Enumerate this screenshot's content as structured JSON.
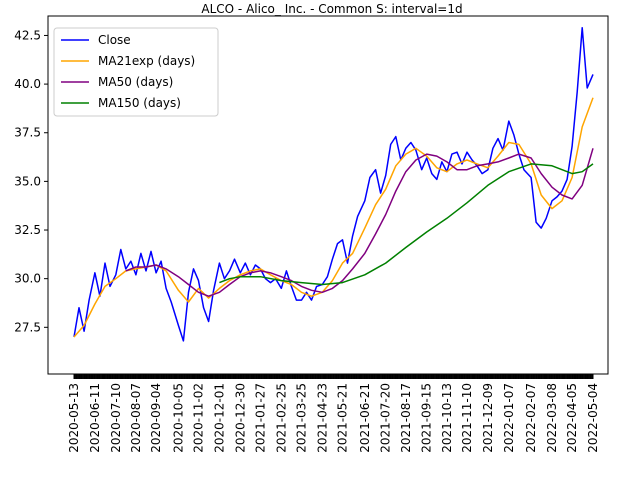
{
  "chart_data": {
    "type": "line",
    "title": "ALCO - Alico_ Inc. - Common S: interval=1d",
    "xlabel": "",
    "ylabel": "",
    "x_ticks": [
      "2020-05-13",
      "2020-06-11",
      "2020-07-10",
      "2020-08-07",
      "2020-09-04",
      "2020-10-05",
      "2020-11-02",
      "2020-12-01",
      "2020-12-30",
      "2021-01-27",
      "2021-02-25",
      "2021-03-25",
      "2021-04-23",
      "2021-05-21",
      "2021-06-21",
      "2021-07-20",
      "2021-08-17",
      "2021-09-15",
      "2021-10-13",
      "2021-11-10",
      "2021-12-09",
      "2022-01-07",
      "2022-02-07",
      "2022-03-08",
      "2022-04-05",
      "2022-05-04"
    ],
    "x_range": [
      "2020-05-13",
      "2022-05-04"
    ],
    "y_ticks": [
      27.5,
      30.0,
      32.5,
      35.0,
      37.5,
      40.0,
      42.5
    ],
    "ylim": [
      25.1,
      43.5
    ],
    "grid": false,
    "legend_position": "top-left",
    "series": [
      {
        "name": "Close",
        "color": "#0000ff",
        "points": [
          [
            "2020-05-13",
            27.0
          ],
          [
            "2020-05-20",
            28.5
          ],
          [
            "2020-05-27",
            27.3
          ],
          [
            "2020-06-03",
            28.9
          ],
          [
            "2020-06-11",
            30.3
          ],
          [
            "2020-06-18",
            29.1
          ],
          [
            "2020-06-25",
            30.8
          ],
          [
            "2020-07-02",
            29.6
          ],
          [
            "2020-07-10",
            30.2
          ],
          [
            "2020-07-17",
            31.5
          ],
          [
            "2020-07-24",
            30.5
          ],
          [
            "2020-07-31",
            30.9
          ],
          [
            "2020-08-07",
            30.2
          ],
          [
            "2020-08-14",
            31.3
          ],
          [
            "2020-08-21",
            30.4
          ],
          [
            "2020-08-28",
            31.4
          ],
          [
            "2020-09-04",
            30.3
          ],
          [
            "2020-09-11",
            30.9
          ],
          [
            "2020-09-18",
            29.5
          ],
          [
            "2020-09-25",
            28.8
          ],
          [
            "2020-10-05",
            27.6
          ],
          [
            "2020-10-12",
            26.8
          ],
          [
            "2020-10-19",
            29.3
          ],
          [
            "2020-10-26",
            30.5
          ],
          [
            "2020-11-02",
            29.9
          ],
          [
            "2020-11-09",
            28.5
          ],
          [
            "2020-11-16",
            27.8
          ],
          [
            "2020-11-23",
            29.4
          ],
          [
            "2020-12-01",
            30.8
          ],
          [
            "2020-12-08",
            30.0
          ],
          [
            "2020-12-15",
            30.4
          ],
          [
            "2020-12-22",
            31.0
          ],
          [
            "2020-12-30",
            30.3
          ],
          [
            "2021-01-06",
            30.8
          ],
          [
            "2021-01-13",
            30.2
          ],
          [
            "2021-01-20",
            30.7
          ],
          [
            "2021-01-27",
            30.5
          ],
          [
            "2021-02-03",
            30.0
          ],
          [
            "2021-02-10",
            29.8
          ],
          [
            "2021-02-17",
            30.0
          ],
          [
            "2021-02-25",
            29.5
          ],
          [
            "2021-03-04",
            30.4
          ],
          [
            "2021-03-11",
            29.6
          ],
          [
            "2021-03-18",
            28.9
          ],
          [
            "2021-03-25",
            28.9
          ],
          [
            "2021-04-01",
            29.3
          ],
          [
            "2021-04-08",
            28.9
          ],
          [
            "2021-04-15",
            29.6
          ],
          [
            "2021-04-23",
            29.7
          ],
          [
            "2021-04-30",
            30.1
          ],
          [
            "2021-05-07",
            31.0
          ],
          [
            "2021-05-14",
            31.8
          ],
          [
            "2021-05-21",
            32.0
          ],
          [
            "2021-05-28",
            30.8
          ],
          [
            "2021-06-04",
            32.2
          ],
          [
            "2021-06-11",
            33.2
          ],
          [
            "2021-06-21",
            34.0
          ],
          [
            "2021-06-28",
            35.2
          ],
          [
            "2021-07-06",
            35.6
          ],
          [
            "2021-07-13",
            34.4
          ],
          [
            "2021-07-20",
            35.3
          ],
          [
            "2021-07-27",
            36.9
          ],
          [
            "2021-08-03",
            37.3
          ],
          [
            "2021-08-10",
            36.1
          ],
          [
            "2021-08-17",
            36.7
          ],
          [
            "2021-08-24",
            37.0
          ],
          [
            "2021-08-31",
            36.6
          ],
          [
            "2021-09-08",
            35.6
          ],
          [
            "2021-09-15",
            36.2
          ],
          [
            "2021-09-22",
            35.4
          ],
          [
            "2021-09-29",
            35.1
          ],
          [
            "2021-10-06",
            36.0
          ],
          [
            "2021-10-13",
            35.5
          ],
          [
            "2021-10-20",
            36.4
          ],
          [
            "2021-10-27",
            36.5
          ],
          [
            "2021-11-03",
            35.9
          ],
          [
            "2021-11-10",
            36.5
          ],
          [
            "2021-11-17",
            36.1
          ],
          [
            "2021-11-24",
            35.8
          ],
          [
            "2021-12-01",
            35.4
          ],
          [
            "2021-12-09",
            35.6
          ],
          [
            "2021-12-16",
            36.7
          ],
          [
            "2021-12-23",
            37.2
          ],
          [
            "2021-12-30",
            36.6
          ],
          [
            "2022-01-07",
            38.1
          ],
          [
            "2022-01-14",
            37.4
          ],
          [
            "2022-01-21",
            36.4
          ],
          [
            "2022-01-28",
            35.6
          ],
          [
            "2022-02-07",
            35.2
          ],
          [
            "2022-02-14",
            32.9
          ],
          [
            "2022-02-21",
            32.6
          ],
          [
            "2022-02-28",
            33.1
          ],
          [
            "2022-03-08",
            34.0
          ],
          [
            "2022-03-15",
            34.2
          ],
          [
            "2022-03-22",
            34.5
          ],
          [
            "2022-03-29",
            35.1
          ],
          [
            "2022-04-05",
            36.8
          ],
          [
            "2022-04-12",
            39.6
          ],
          [
            "2022-04-19",
            42.9
          ],
          [
            "2022-04-26",
            39.8
          ],
          [
            "2022-05-04",
            40.5
          ]
        ]
      },
      {
        "name": "MA21exp (days)",
        "color": "#ffa500",
        "points": [
          [
            "2020-05-13",
            27.0
          ],
          [
            "2020-05-27",
            27.6
          ],
          [
            "2020-06-11",
            28.7
          ],
          [
            "2020-06-25",
            29.6
          ],
          [
            "2020-07-10",
            30.0
          ],
          [
            "2020-07-24",
            30.4
          ],
          [
            "2020-08-07",
            30.5
          ],
          [
            "2020-08-21",
            30.6
          ],
          [
            "2020-09-04",
            30.7
          ],
          [
            "2020-09-18",
            30.4
          ],
          [
            "2020-10-05",
            29.4
          ],
          [
            "2020-10-19",
            28.8
          ],
          [
            "2020-11-02",
            29.5
          ],
          [
            "2020-11-16",
            29.0
          ],
          [
            "2020-12-01",
            29.5
          ],
          [
            "2020-12-15",
            29.9
          ],
          [
            "2020-12-30",
            30.2
          ],
          [
            "2021-01-13",
            30.4
          ],
          [
            "2021-01-27",
            30.5
          ],
          [
            "2021-02-10",
            30.2
          ],
          [
            "2021-02-25",
            29.9
          ],
          [
            "2021-03-11",
            29.7
          ],
          [
            "2021-03-25",
            29.3
          ],
          [
            "2021-04-08",
            29.1
          ],
          [
            "2021-04-23",
            29.3
          ],
          [
            "2021-05-07",
            29.9
          ],
          [
            "2021-05-21",
            30.8
          ],
          [
            "2021-06-04",
            31.3
          ],
          [
            "2021-06-21",
            32.6
          ],
          [
            "2021-07-06",
            33.8
          ],
          [
            "2021-07-20",
            34.6
          ],
          [
            "2021-08-03",
            35.8
          ],
          [
            "2021-08-17",
            36.4
          ],
          [
            "2021-08-31",
            36.7
          ],
          [
            "2021-09-15",
            36.3
          ],
          [
            "2021-09-29",
            35.7
          ],
          [
            "2021-10-13",
            35.5
          ],
          [
            "2021-10-27",
            35.9
          ],
          [
            "2021-11-10",
            36.1
          ],
          [
            "2021-11-24",
            35.9
          ],
          [
            "2021-12-09",
            35.7
          ],
          [
            "2021-12-23",
            36.3
          ],
          [
            "2022-01-07",
            37.0
          ],
          [
            "2022-01-21",
            36.9
          ],
          [
            "2022-02-07",
            35.9
          ],
          [
            "2022-02-21",
            34.3
          ],
          [
            "2022-03-08",
            33.6
          ],
          [
            "2022-03-22",
            34.0
          ],
          [
            "2022-04-05",
            35.2
          ],
          [
            "2022-04-19",
            37.8
          ],
          [
            "2022-05-04",
            39.3
          ]
        ]
      },
      {
        "name": "MA50 (days)",
        "color": "#800080",
        "points": [
          [
            "2020-07-24",
            30.4
          ],
          [
            "2020-08-07",
            30.6
          ],
          [
            "2020-08-21",
            30.6
          ],
          [
            "2020-09-04",
            30.7
          ],
          [
            "2020-09-18",
            30.5
          ],
          [
            "2020-10-05",
            30.1
          ],
          [
            "2020-10-19",
            29.7
          ],
          [
            "2020-11-02",
            29.3
          ],
          [
            "2020-11-16",
            29.1
          ],
          [
            "2020-12-01",
            29.3
          ],
          [
            "2020-12-15",
            29.7
          ],
          [
            "2020-12-30",
            30.1
          ],
          [
            "2021-01-13",
            30.3
          ],
          [
            "2021-01-27",
            30.4
          ],
          [
            "2021-02-10",
            30.3
          ],
          [
            "2021-02-25",
            30.1
          ],
          [
            "2021-03-11",
            29.9
          ],
          [
            "2021-03-25",
            29.6
          ],
          [
            "2021-04-08",
            29.4
          ],
          [
            "2021-04-23",
            29.3
          ],
          [
            "2021-05-07",
            29.5
          ],
          [
            "2021-05-21",
            29.9
          ],
          [
            "2021-06-04",
            30.5
          ],
          [
            "2021-06-21",
            31.3
          ],
          [
            "2021-07-06",
            32.3
          ],
          [
            "2021-07-20",
            33.3
          ],
          [
            "2021-08-03",
            34.5
          ],
          [
            "2021-08-17",
            35.5
          ],
          [
            "2021-08-31",
            36.1
          ],
          [
            "2021-09-15",
            36.4
          ],
          [
            "2021-09-29",
            36.3
          ],
          [
            "2021-10-13",
            36.0
          ],
          [
            "2021-10-27",
            35.6
          ],
          [
            "2021-11-10",
            35.6
          ],
          [
            "2021-11-24",
            35.8
          ],
          [
            "2021-12-09",
            35.9
          ],
          [
            "2021-12-23",
            36.0
          ],
          [
            "2022-01-07",
            36.2
          ],
          [
            "2022-01-21",
            36.4
          ],
          [
            "2022-02-07",
            36.2
          ],
          [
            "2022-02-21",
            35.4
          ],
          [
            "2022-03-08",
            34.7
          ],
          [
            "2022-03-22",
            34.3
          ],
          [
            "2022-04-05",
            34.1
          ],
          [
            "2022-04-19",
            34.8
          ],
          [
            "2022-05-04",
            36.7
          ]
        ]
      },
      {
        "name": "MA150 (days)",
        "color": "#008000",
        "points": [
          [
            "2020-12-01",
            29.8
          ],
          [
            "2020-12-15",
            30.0
          ],
          [
            "2020-12-30",
            30.1
          ],
          [
            "2021-01-27",
            30.1
          ],
          [
            "2021-02-25",
            29.9
          ],
          [
            "2021-03-25",
            29.8
          ],
          [
            "2021-04-23",
            29.7
          ],
          [
            "2021-05-21",
            29.8
          ],
          [
            "2021-06-21",
            30.2
          ],
          [
            "2021-07-20",
            30.8
          ],
          [
            "2021-08-17",
            31.6
          ],
          [
            "2021-09-15",
            32.4
          ],
          [
            "2021-10-13",
            33.1
          ],
          [
            "2021-11-10",
            33.9
          ],
          [
            "2021-12-09",
            34.8
          ],
          [
            "2022-01-07",
            35.5
          ],
          [
            "2022-02-07",
            35.9
          ],
          [
            "2022-03-08",
            35.8
          ],
          [
            "2022-04-05",
            35.4
          ],
          [
            "2022-04-19",
            35.5
          ],
          [
            "2022-05-04",
            35.9
          ]
        ]
      }
    ]
  }
}
